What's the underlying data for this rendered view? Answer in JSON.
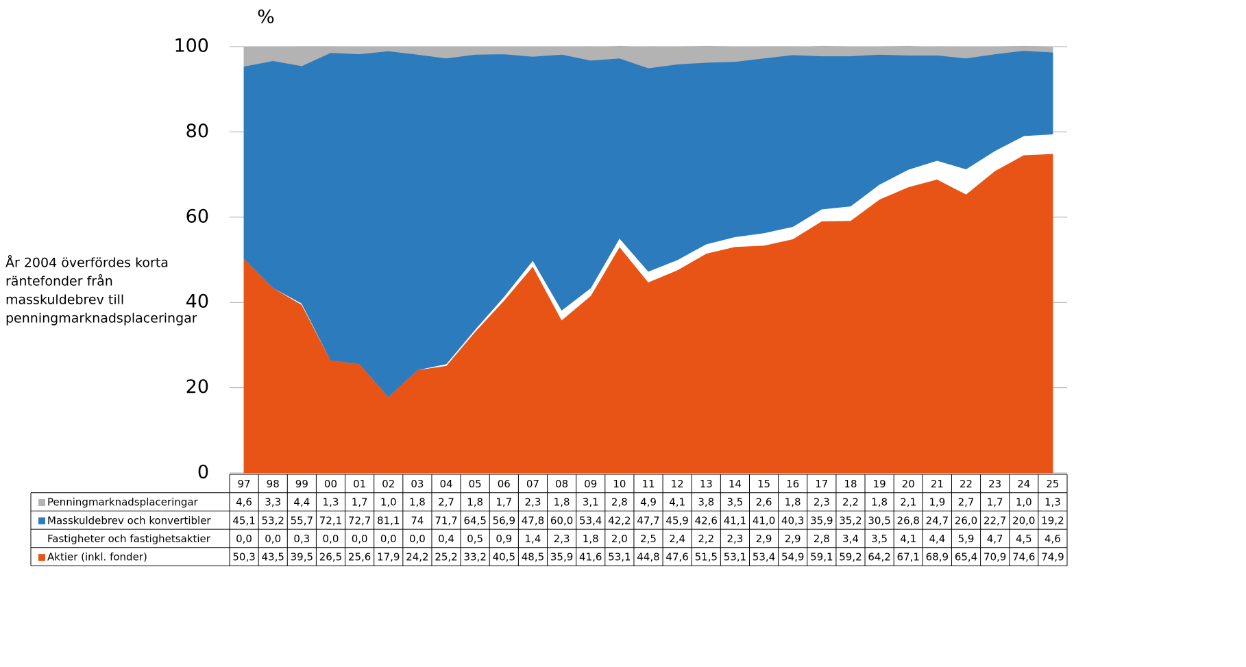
{
  "chart_data": {
    "type": "stacked_area",
    "y_label": "%",
    "annotation": [
      "År 2004 överfördes korta",
      "räntefonder från",
      "masskuldebrev till",
      "penningmarknadsplaceringar"
    ],
    "categories": [
      "97",
      "98",
      "99",
      "00",
      "01",
      "02",
      "03",
      "04",
      "05",
      "06",
      "07",
      "08",
      "09",
      "10",
      "11",
      "12",
      "13",
      "14",
      "15",
      "16",
      "17",
      "18",
      "19",
      "20",
      "21",
      "22",
      "23",
      "24",
      "25"
    ],
    "ylim": [
      0,
      100
    ],
    "yticks": [
      0,
      20,
      40,
      60,
      80,
      100
    ],
    "grid": true,
    "series": [
      {
        "name": "Penningmarknadsplaceringar",
        "color": "#b3b3b3",
        "values": [
          4.6,
          3.3,
          4.4,
          1.3,
          1.7,
          1.0,
          1.8,
          2.7,
          1.8,
          1.7,
          2.3,
          1.8,
          3.1,
          2.8,
          4.9,
          4.1,
          3.8,
          3.5,
          2.6,
          1.8,
          2.3,
          2.2,
          1.8,
          2.1,
          1.9,
          2.7,
          1.7,
          1.0,
          1.3
        ],
        "value_labels": [
          "4,6",
          "3,3",
          "4,4",
          "1,3",
          "1,7",
          "1,0",
          "1,8",
          "2,7",
          "1,8",
          "1,7",
          "2,3",
          "1,8",
          "3,1",
          "2,8",
          "4,9",
          "4,1",
          "3,8",
          "3,5",
          "2,6",
          "1,8",
          "2,3",
          "2,2",
          "1,8",
          "2,1",
          "1,9",
          "2,7",
          "1,7",
          "1,0",
          "1,3"
        ]
      },
      {
        "name": "Masskuldebrev och konvertibler",
        "color": "#2c7bbd",
        "values": [
          45.1,
          53.2,
          55.7,
          72.1,
          72.7,
          81.1,
          74,
          71.7,
          64.5,
          56.9,
          47.8,
          60.0,
          53.4,
          42.2,
          47.7,
          45.9,
          42.6,
          41.1,
          41.0,
          40.3,
          35.9,
          35.2,
          30.5,
          26.8,
          24.7,
          26.0,
          22.7,
          20.0,
          19.2
        ],
        "value_labels": [
          "45,1",
          "53,2",
          "55,7",
          "72,1",
          "72,7",
          "81,1",
          "74",
          "71,7",
          "64,5",
          "56,9",
          "47,8",
          "60,0",
          "53,4",
          "42,2",
          "47,7",
          "45,9",
          "42,6",
          "41,1",
          "41,0",
          "40,3",
          "35,9",
          "35,2",
          "30,5",
          "26,8",
          "24,7",
          "26,0",
          "22,7",
          "20,0",
          "19,2"
        ]
      },
      {
        "name": "Fastigheter och fastighetsaktier",
        "color": "#ffffff",
        "values": [
          0.0,
          0.0,
          0.3,
          0.0,
          0.0,
          0.0,
          0.0,
          0.4,
          0.5,
          0.9,
          1.4,
          2.3,
          1.8,
          2.0,
          2.5,
          2.4,
          2.2,
          2.3,
          2.9,
          2.9,
          2.8,
          3.4,
          3.5,
          4.1,
          4.4,
          5.9,
          4.7,
          4.5,
          4.6
        ],
        "value_labels": [
          "0,0",
          "0,0",
          "0,3",
          "0,0",
          "0,0",
          "0,0",
          "0,0",
          "0,4",
          "0,5",
          "0,9",
          "1,4",
          "2,3",
          "1,8",
          "2,0",
          "2,5",
          "2,4",
          "2,2",
          "2,3",
          "2,9",
          "2,9",
          "2,8",
          "3,4",
          "3,5",
          "4,1",
          "4,4",
          "5,9",
          "4,7",
          "4,5",
          "4,6"
        ]
      },
      {
        "name": "Aktier (inkl. fonder)",
        "color": "#e85416",
        "values": [
          50.3,
          43.5,
          39.5,
          26.5,
          25.6,
          17.9,
          24.2,
          25.2,
          33.2,
          40.5,
          48.5,
          35.9,
          41.6,
          53.1,
          44.8,
          47.6,
          51.5,
          53.1,
          53.4,
          54.9,
          59.1,
          59.2,
          64.2,
          67.1,
          68.9,
          65.4,
          70.9,
          74.6,
          74.9
        ],
        "value_labels": [
          "50,3",
          "43,5",
          "39,5",
          "26,5",
          "25,6",
          "17,9",
          "24,2",
          "25,2",
          "33,2",
          "40,5",
          "48,5",
          "35,9",
          "41,6",
          "53,1",
          "44,8",
          "47,6",
          "51,5",
          "53,1",
          "53,4",
          "54,9",
          "59,1",
          "59,2",
          "64,2",
          "67,1",
          "68,9",
          "65,4",
          "70,9",
          "74,6",
          "74,9"
        ]
      }
    ]
  }
}
